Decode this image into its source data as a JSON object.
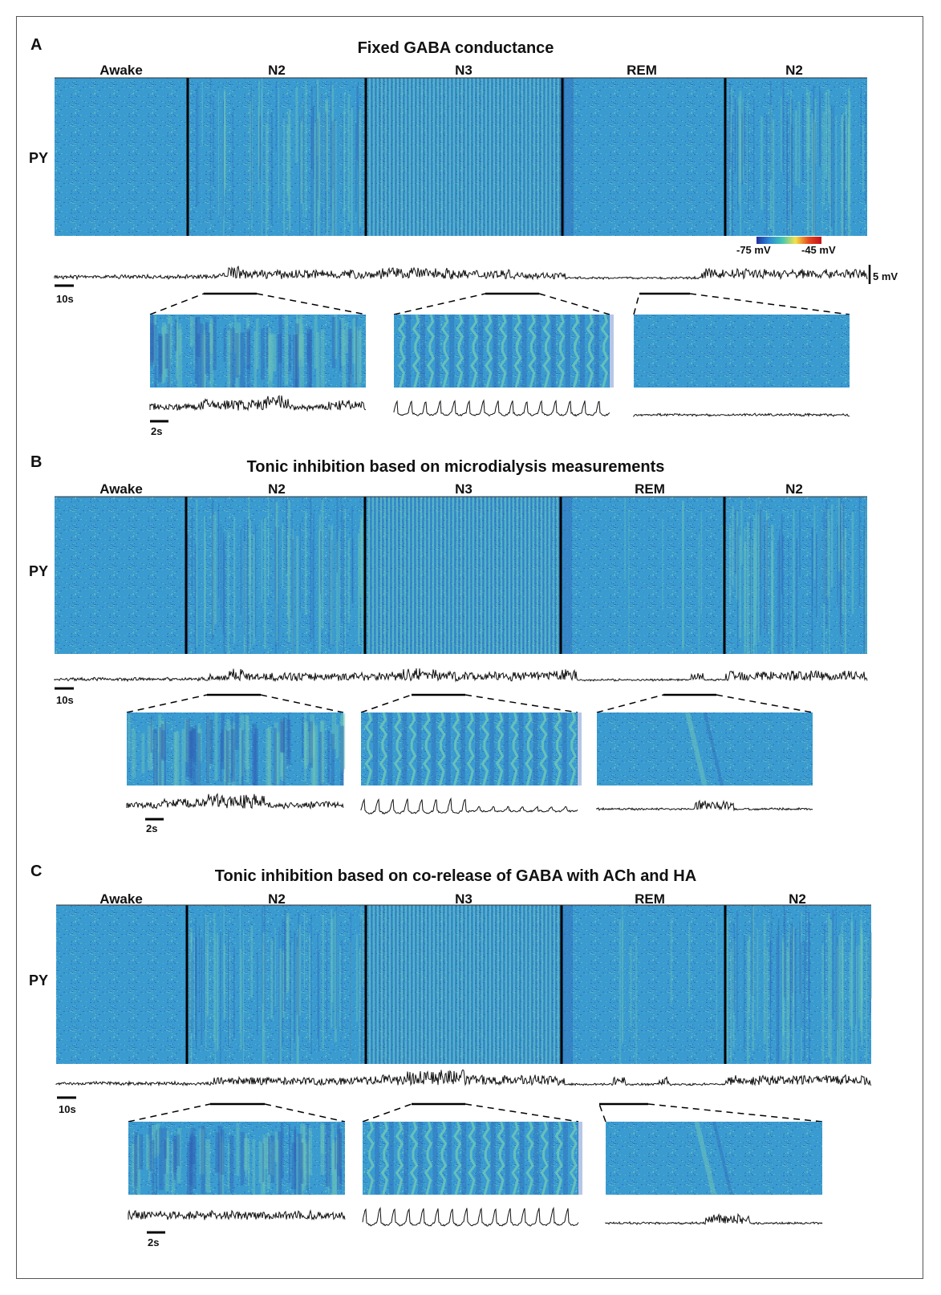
{
  "colorbar": {
    "min_label": "-75 mV",
    "max_label": "-45 mV",
    "colors": [
      "#1f2f9e",
      "#2c8ad6",
      "#44c7b3",
      "#f2e34a",
      "#e64a1f",
      "#c4121a"
    ]
  },
  "heatmap_colors": {
    "base": "#3a9bd0",
    "light": "#6cc3b8",
    "dark": "#2f5fb5"
  },
  "scale_bars": {
    "time_long": "10s",
    "time_short": "2s",
    "voltage": "5 mV"
  },
  "row_label": "PY",
  "panels": [
    {
      "letter": "A",
      "title": "Fixed GABA  conductance",
      "stages": [
        "Awake",
        "N2",
        "N3",
        "REM",
        "N2"
      ]
    },
    {
      "letter": "B",
      "title": "Tonic inhibition based on microdialysis measurements",
      "stages": [
        "Awake",
        "N2",
        "N3",
        "REM",
        "N2"
      ]
    },
    {
      "letter": "C",
      "title": "Tonic inhibition based on co-release of GABA with ACh and HA",
      "stages": [
        "Awake",
        "N2",
        "N3",
        "REM",
        "N2"
      ]
    }
  ]
}
